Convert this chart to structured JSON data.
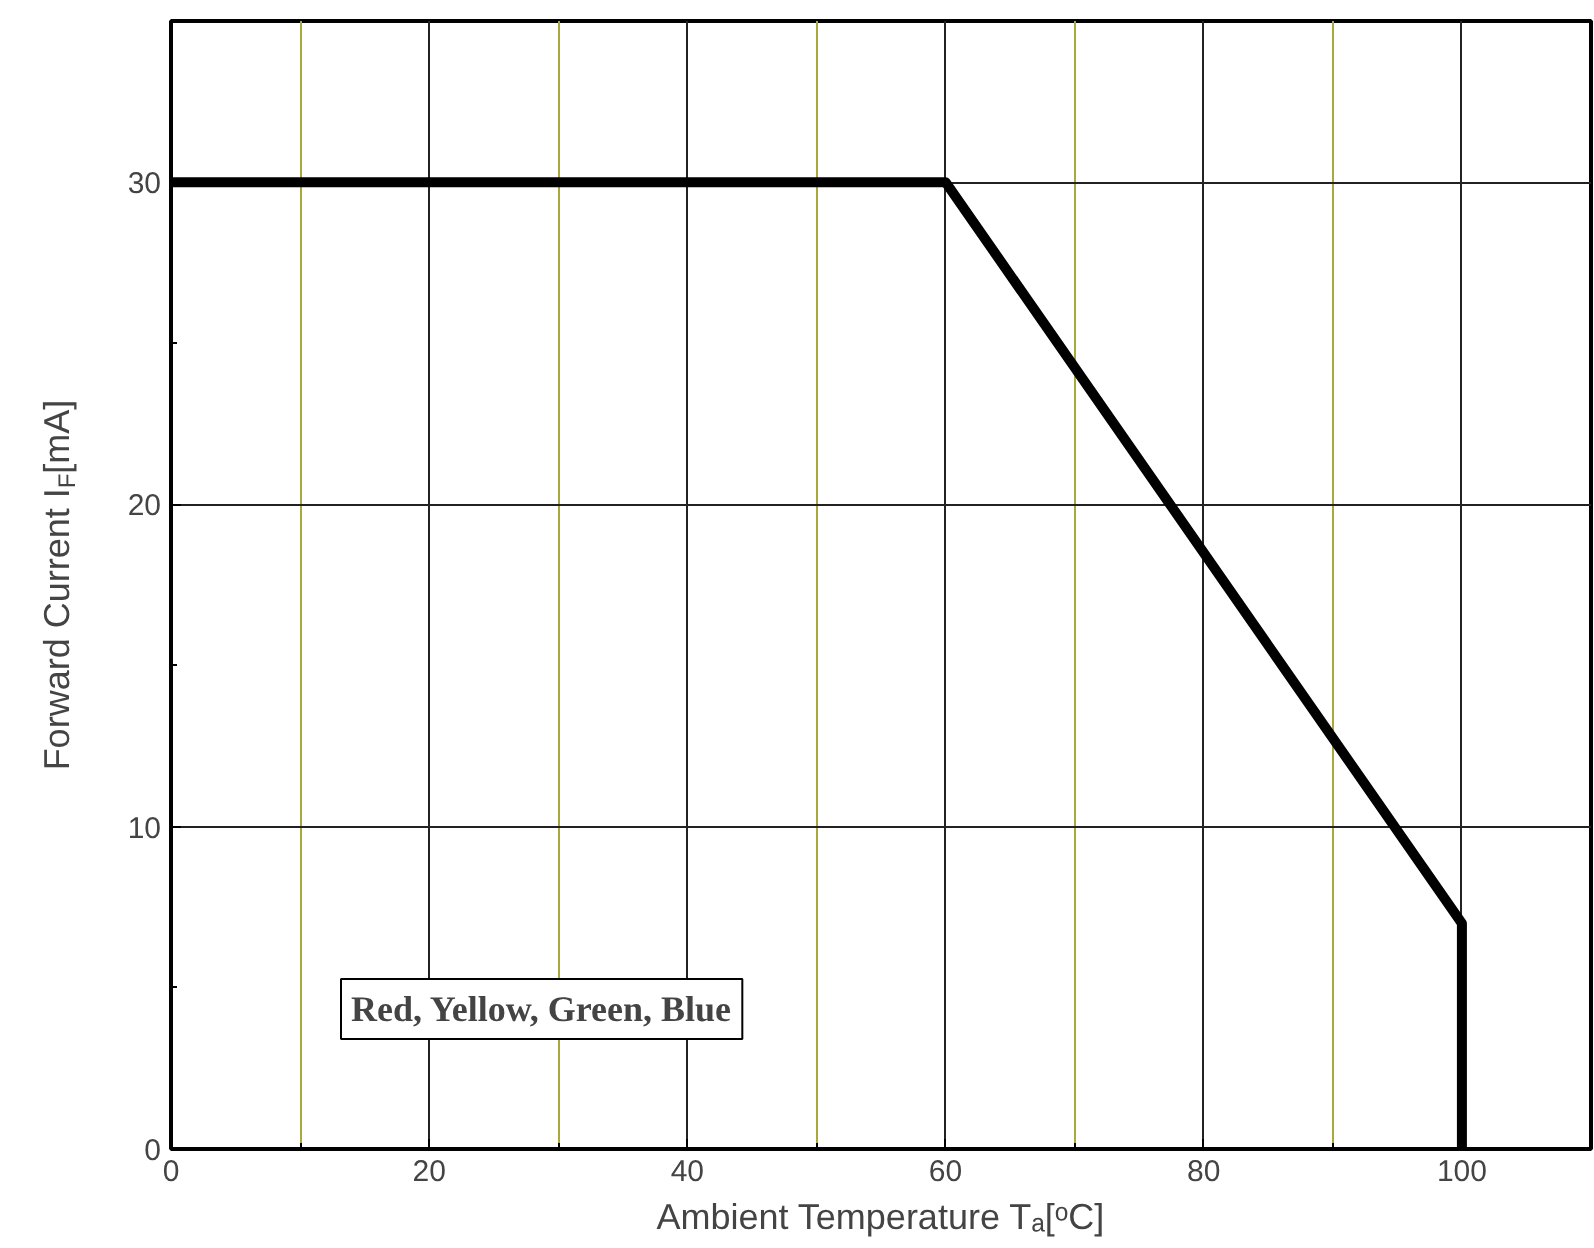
{
  "chart_data": {
    "type": "line",
    "xlabel": "Ambient Temperature Tₐ[ᵒC]",
    "ylabel": "Forward Current I$_{F}$[mA]",
    "x": [
      0,
      60,
      100,
      100
    ],
    "series": [
      {
        "color": "#000000",
        "values": [
          30,
          30,
          7,
          0
        ]
      }
    ],
    "xlim": [
      0,
      110
    ],
    "ylim": [
      0,
      35
    ],
    "xticks": [
      0,
      {
        "value": 10,
        "label": null
      },
      20,
      {
        "value": 30,
        "label": null
      },
      40,
      {
        "value": 50,
        "label": null
      },
      60,
      {
        "value": 70,
        "label": null
      },
      80,
      {
        "value": 90,
        "label": null
      },
      100
    ],
    "yticks": [
      0,
      10,
      20,
      30
    ],
    "grid": true,
    "marker": "none",
    "line_style": "solid",
    "annotations": [
      "Red, Yellow, Green, Blue"
    ]
  }
}
